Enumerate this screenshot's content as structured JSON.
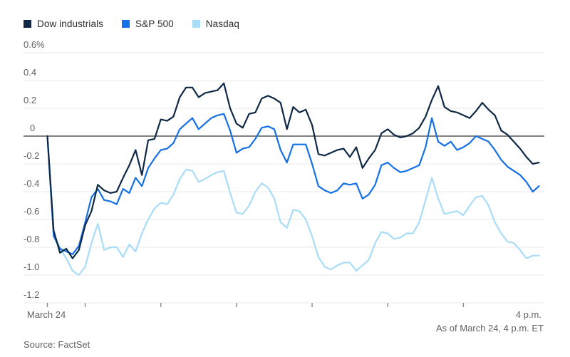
{
  "legend": {
    "items": [
      "Dow industrials",
      "S&P 500",
      "Nasdaq"
    ]
  },
  "footer": {
    "as_of": "As of March 24, 4 p.m. ET",
    "source": "Source: FactSet"
  },
  "chart_data": {
    "type": "line",
    "x_axis": {
      "start_label": "March 24",
      "end_label": "4 p.m.",
      "session_hours": [
        9.5,
        16
      ],
      "tick_hours": [
        9.5,
        10,
        11,
        12,
        13,
        14,
        15
      ],
      "sample_interval_minutes": 5
    },
    "y_axis": {
      "unit": "%",
      "min": -1.2,
      "max": 0.6,
      "tick_step": 0.2,
      "tick_labels": [
        "0.6%",
        "0.4",
        "0.2",
        "0",
        "-0.2",
        "-0.4",
        "-0.6",
        "-0.8",
        "-1.0",
        "-1.2"
      ],
      "zero_line": true,
      "grid": true
    },
    "colors": {
      "grid": "#e8e8e8",
      "zero_line": "#6e6e6e",
      "tick": "#8a8a8a"
    },
    "series": [
      {
        "name": "Dow industrials",
        "color": "#0e2846",
        "values": [
          0,
          -0.68,
          -0.84,
          -0.81,
          -0.88,
          -0.82,
          -0.64,
          -0.54,
          -0.35,
          -0.39,
          -0.41,
          -0.4,
          -0.3,
          -0.21,
          -0.1,
          -0.28,
          -0.03,
          -0.02,
          0.12,
          0.11,
          0.14,
          0.28,
          0.35,
          0.35,
          0.28,
          0.31,
          0.32,
          0.33,
          0.38,
          0.2,
          0.09,
          0.06,
          0.16,
          0.17,
          0.27,
          0.29,
          0.27,
          0.24,
          0.05,
          0.21,
          0.17,
          0.19,
          0.08,
          -0.13,
          -0.14,
          -0.12,
          -0.1,
          -0.09,
          -0.15,
          -0.08,
          -0.23,
          -0.16,
          -0.1,
          0.02,
          0.05,
          0.01,
          -0.01,
          0.0,
          0.02,
          0.06,
          0.14,
          0.26,
          0.36,
          0.21,
          0.18,
          0.17,
          0.15,
          0.13,
          0.18,
          0.24,
          0.19,
          0.15,
          0.04,
          0.01,
          -0.04,
          -0.09,
          -0.15,
          -0.2,
          -0.19
        ]
      },
      {
        "name": "S&P 500",
        "color": "#1470e6",
        "values": [
          0,
          -0.72,
          -0.81,
          -0.83,
          -0.85,
          -0.79,
          -0.62,
          -0.44,
          -0.38,
          -0.46,
          -0.47,
          -0.49,
          -0.38,
          -0.41,
          -0.3,
          -0.36,
          -0.23,
          -0.16,
          -0.1,
          -0.09,
          -0.05,
          0.05,
          0.09,
          0.13,
          0.05,
          0.09,
          0.13,
          0.15,
          0.16,
          0.04,
          -0.12,
          -0.09,
          -0.08,
          -0.02,
          0.06,
          0.07,
          0.05,
          -0.1,
          -0.19,
          -0.06,
          -0.06,
          -0.06,
          -0.2,
          -0.36,
          -0.39,
          -0.41,
          -0.39,
          -0.34,
          -0.35,
          -0.34,
          -0.45,
          -0.42,
          -0.35,
          -0.21,
          -0.19,
          -0.23,
          -0.26,
          -0.25,
          -0.23,
          -0.21,
          -0.08,
          0.13,
          -0.04,
          -0.07,
          -0.04,
          -0.1,
          -0.08,
          -0.05,
          0.0,
          -0.02,
          -0.04,
          -0.1,
          -0.17,
          -0.22,
          -0.25,
          -0.28,
          -0.33,
          -0.4,
          -0.36
        ]
      },
      {
        "name": "Nasdaq",
        "color": "#a9dcf8",
        "values": [
          0,
          -0.7,
          -0.81,
          -0.88,
          -0.97,
          -1.0,
          -0.94,
          -0.77,
          -0.63,
          -0.82,
          -0.8,
          -0.8,
          -0.87,
          -0.78,
          -0.83,
          -0.7,
          -0.6,
          -0.52,
          -0.48,
          -0.49,
          -0.42,
          -0.31,
          -0.24,
          -0.25,
          -0.33,
          -0.31,
          -0.28,
          -0.26,
          -0.25,
          -0.41,
          -0.55,
          -0.56,
          -0.5,
          -0.4,
          -0.34,
          -0.37,
          -0.45,
          -0.62,
          -0.66,
          -0.53,
          -0.54,
          -0.6,
          -0.72,
          -0.87,
          -0.94,
          -0.96,
          -0.93,
          -0.91,
          -0.91,
          -0.97,
          -0.93,
          -0.89,
          -0.77,
          -0.69,
          -0.7,
          -0.74,
          -0.73,
          -0.7,
          -0.7,
          -0.62,
          -0.46,
          -0.3,
          -0.45,
          -0.56,
          -0.55,
          -0.54,
          -0.57,
          -0.5,
          -0.44,
          -0.43,
          -0.5,
          -0.62,
          -0.7,
          -0.76,
          -0.77,
          -0.82,
          -0.88,
          -0.86,
          -0.86
        ]
      }
    ]
  }
}
